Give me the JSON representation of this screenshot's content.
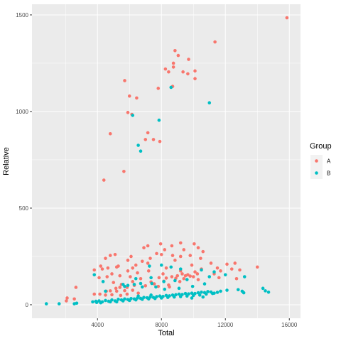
{
  "chart_data": {
    "type": "scatter",
    "title": "",
    "xlabel": "Total",
    "ylabel": "Relative",
    "xlim": [
      -100,
      16700
    ],
    "ylim": [
      -70,
      1555
    ],
    "x_ticks": [
      4000,
      8000,
      12000,
      16000
    ],
    "y_ticks": [
      0,
      500,
      1000,
      1500
    ],
    "x_tick_labels": [
      "4000",
      "8000",
      "12000",
      "16000"
    ],
    "y_tick_labels": [
      "0",
      "500",
      "1000",
      "1500"
    ],
    "grid": true,
    "legend": {
      "title": "Group",
      "position": "right"
    },
    "series": [
      {
        "name": "A",
        "color": "#F8766D",
        "points": [
          [
            15850,
            1485
          ],
          [
            11350,
            1360
          ],
          [
            8850,
            1315
          ],
          [
            9050,
            1290
          ],
          [
            9700,
            1270
          ],
          [
            8750,
            1250
          ],
          [
            8750,
            1230
          ],
          [
            8250,
            1220
          ],
          [
            8450,
            1205
          ],
          [
            9350,
            1205
          ],
          [
            9650,
            1195
          ],
          [
            10100,
            1210
          ],
          [
            10100,
            1170
          ],
          [
            5700,
            1160
          ],
          [
            7800,
            1120
          ],
          [
            8700,
            1130
          ],
          [
            6000,
            1080
          ],
          [
            6450,
            1070
          ],
          [
            5900,
            995
          ],
          [
            6150,
            985
          ],
          [
            4800,
            885
          ],
          [
            7150,
            890
          ],
          [
            7000,
            855
          ],
          [
            7500,
            855
          ],
          [
            7900,
            845
          ],
          [
            5650,
            690
          ],
          [
            4400,
            645
          ],
          [
            7950,
            315
          ],
          [
            9200,
            320
          ],
          [
            7150,
            305
          ],
          [
            8650,
            305
          ],
          [
            10050,
            315
          ],
          [
            6900,
            295
          ],
          [
            8200,
            285
          ],
          [
            9400,
            285
          ],
          [
            10300,
            295
          ],
          [
            10600,
            275
          ],
          [
            8000,
            260
          ],
          [
            9800,
            255
          ],
          [
            10450,
            240
          ],
          [
            6100,
            250
          ],
          [
            7300,
            240
          ],
          [
            4800,
            255
          ],
          [
            5100,
            260
          ],
          [
            7700,
            265
          ],
          [
            8700,
            255
          ],
          [
            9200,
            250
          ],
          [
            4500,
            240
          ],
          [
            5900,
            230
          ],
          [
            6800,
            225
          ],
          [
            7150,
            215
          ],
          [
            8850,
            230
          ],
          [
            11100,
            215
          ],
          [
            12100,
            210
          ],
          [
            12600,
            215
          ],
          [
            5300,
            200
          ],
          [
            6400,
            205
          ],
          [
            8300,
            190
          ],
          [
            9900,
            205
          ],
          [
            11500,
            190
          ],
          [
            4200,
            200
          ],
          [
            4650,
            190
          ],
          [
            5200,
            195
          ],
          [
            6200,
            190
          ],
          [
            10500,
            185
          ],
          [
            12400,
            185
          ],
          [
            14000,
            195
          ],
          [
            3800,
            180
          ],
          [
            4300,
            185
          ],
          [
            5900,
            175
          ],
          [
            7200,
            175
          ],
          [
            9200,
            175
          ],
          [
            10100,
            170
          ],
          [
            11700,
            175
          ],
          [
            12900,
            180
          ],
          [
            4900,
            160
          ],
          [
            6500,
            165
          ],
          [
            8100,
            160
          ],
          [
            9300,
            160
          ],
          [
            9650,
            155
          ],
          [
            10250,
            160
          ],
          [
            11300,
            160
          ],
          [
            4600,
            145
          ],
          [
            5400,
            150
          ],
          [
            6050,
            145
          ],
          [
            8650,
            145
          ],
          [
            9000,
            150
          ],
          [
            9500,
            150
          ],
          [
            9800,
            148
          ],
          [
            10000,
            145
          ],
          [
            4100,
            140
          ],
          [
            6700,
            135
          ],
          [
            7850,
            140
          ],
          [
            8300,
            138
          ],
          [
            8900,
            137
          ],
          [
            9400,
            135
          ],
          [
            10300,
            130
          ],
          [
            11600,
            140
          ],
          [
            12700,
            135
          ],
          [
            5000,
            115
          ],
          [
            6200,
            120
          ],
          [
            7350,
            118
          ],
          [
            8150,
            122
          ],
          [
            9150,
            120
          ],
          [
            5500,
            105
          ],
          [
            7550,
            108
          ],
          [
            8450,
            102
          ],
          [
            6300,
            100
          ],
          [
            7000,
            98
          ],
          [
            7800,
            95
          ],
          [
            8500,
            92
          ],
          [
            2650,
            90
          ],
          [
            5400,
            90
          ],
          [
            5850,
            90
          ],
          [
            4550,
            70
          ],
          [
            4800,
            72
          ],
          [
            5200,
            70
          ],
          [
            5700,
            73
          ],
          [
            6200,
            75
          ],
          [
            3800,
            55
          ],
          [
            4150,
            55
          ],
          [
            4500,
            50
          ],
          [
            4900,
            52
          ],
          [
            5450,
            48
          ],
          [
            2100,
            35
          ],
          [
            2550,
            30
          ],
          [
            2050,
            20
          ],
          [
            5850,
            55
          ],
          [
            6550,
            60
          ],
          [
            5150,
            85
          ]
        ]
      },
      {
        "name": "B",
        "color": "#00BFC4",
        "points": [
          [
            11000,
            1045
          ],
          [
            8600,
            1125
          ],
          [
            6200,
            980
          ],
          [
            7850,
            955
          ],
          [
            6550,
            825
          ],
          [
            6700,
            795
          ],
          [
            3800,
            155
          ],
          [
            4350,
            120
          ],
          [
            5600,
            105
          ],
          [
            6700,
            110
          ],
          [
            7400,
            110
          ],
          [
            8150,
            120
          ],
          [
            8850,
            125
          ],
          [
            9600,
            130
          ],
          [
            11000,
            145
          ],
          [
            10500,
            180
          ],
          [
            11300,
            170
          ],
          [
            12000,
            155
          ],
          [
            13200,
            145
          ],
          [
            8000,
            205
          ],
          [
            7250,
            200
          ],
          [
            8600,
            195
          ],
          [
            9200,
            185
          ],
          [
            6300,
            105
          ],
          [
            5900,
            100
          ],
          [
            4500,
            70
          ],
          [
            6800,
            92
          ],
          [
            7650,
            92
          ],
          [
            8200,
            80
          ],
          [
            9100,
            85
          ],
          [
            7350,
            140
          ],
          [
            6400,
            135
          ],
          [
            5700,
            95
          ],
          [
            9950,
            95
          ],
          [
            10700,
            108
          ],
          [
            11700,
            70
          ],
          [
            12100,
            75
          ],
          [
            12800,
            78
          ],
          [
            13050,
            70
          ],
          [
            13150,
            62
          ],
          [
            14350,
            85
          ],
          [
            14500,
            72
          ],
          [
            14700,
            65
          ],
          [
            3700,
            15
          ],
          [
            3900,
            18
          ],
          [
            4100,
            20
          ],
          [
            4300,
            15
          ],
          [
            4500,
            22
          ],
          [
            4700,
            18
          ],
          [
            4900,
            25
          ],
          [
            5100,
            20
          ],
          [
            5300,
            28
          ],
          [
            5500,
            25
          ],
          [
            5700,
            30
          ],
          [
            5900,
            27
          ],
          [
            6100,
            32
          ],
          [
            6300,
            30
          ],
          [
            6500,
            35
          ],
          [
            6700,
            33
          ],
          [
            6900,
            38
          ],
          [
            7100,
            36
          ],
          [
            7300,
            40
          ],
          [
            7500,
            38
          ],
          [
            7700,
            42
          ],
          [
            7900,
            45
          ],
          [
            8100,
            43
          ],
          [
            8300,
            48
          ],
          [
            8500,
            46
          ],
          [
            8700,
            50
          ],
          [
            8900,
            52
          ],
          [
            9100,
            55
          ],
          [
            9300,
            53
          ],
          [
            9500,
            58
          ],
          [
            9700,
            56
          ],
          [
            9900,
            60
          ],
          [
            10100,
            58
          ],
          [
            10300,
            62
          ],
          [
            10500,
            65
          ],
          [
            10700,
            63
          ],
          [
            10900,
            68
          ],
          [
            11100,
            66
          ],
          [
            11300,
            60
          ],
          [
            11500,
            64
          ],
          [
            3950,
            12
          ],
          [
            4200,
            10
          ],
          [
            4800,
            15
          ],
          [
            5200,
            15
          ],
          [
            5600,
            20
          ],
          [
            6000,
            22
          ],
          [
            6400,
            25
          ],
          [
            6800,
            28
          ],
          [
            7200,
            30
          ],
          [
            7600,
            32
          ],
          [
            8000,
            35
          ],
          [
            8400,
            38
          ],
          [
            8800,
            40
          ],
          [
            9200,
            42
          ],
          [
            9600,
            45
          ],
          [
            10000,
            48
          ],
          [
            10400,
            50
          ],
          [
            10800,
            55
          ],
          [
            11200,
            58
          ],
          [
            800,
            5
          ],
          [
            1600,
            5
          ],
          [
            2550,
            5
          ],
          [
            2700,
            8
          ],
          [
            6550,
            45
          ],
          [
            7350,
            50
          ],
          [
            9900,
            35
          ],
          [
            10600,
            40
          ]
        ]
      }
    ]
  }
}
